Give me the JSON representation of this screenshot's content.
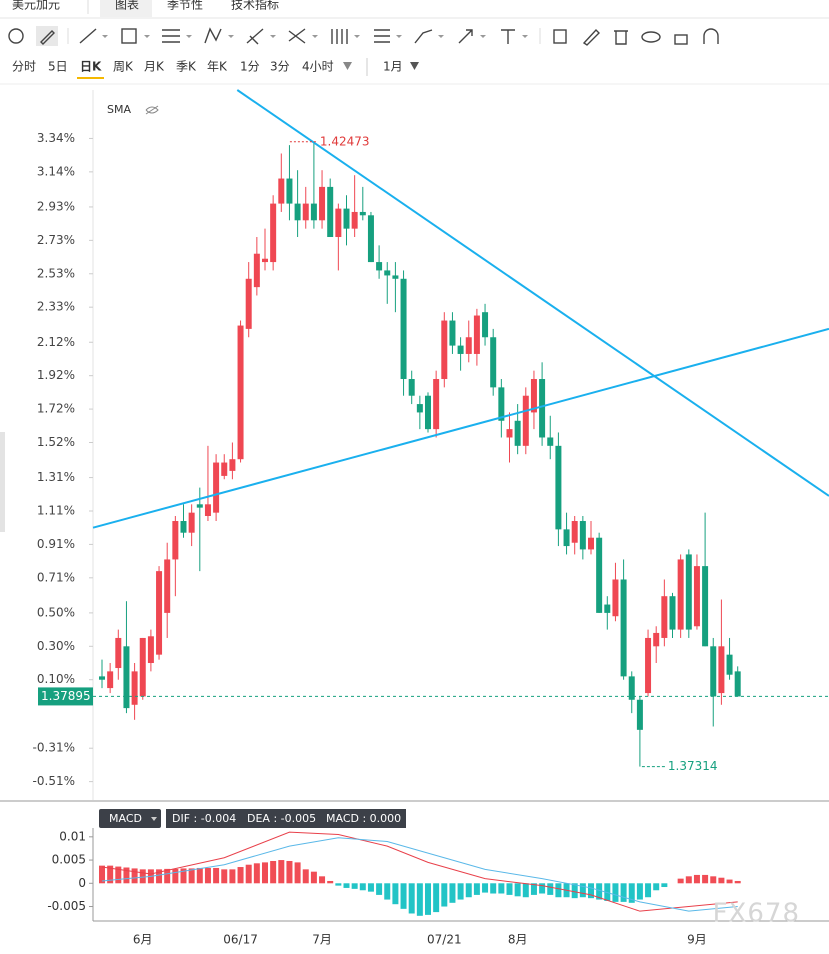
{
  "ui": {
    "tabs": [
      "美元加元",
      "图表",
      "季节性",
      "技术指标"
    ],
    "timeframes": [
      "分时",
      "5日",
      "日K",
      "周K",
      "月K",
      "季K",
      "年K",
      "1分",
      "3分",
      "4小时"
    ],
    "period": "1月",
    "indicator_label": "SMA",
    "watermark": "FX678"
  },
  "chart_data": [
    {
      "type": "candlestick",
      "up_color": "#ef4752",
      "down_color": "#16a07f",
      "categories": [
        null,
        null,
        null,
        null,
        null,
        "6月",
        null,
        null,
        null,
        null,
        null,
        null,
        null,
        null,
        null,
        null,
        null,
        "06/17",
        null,
        null,
        null,
        null,
        null,
        null,
        null,
        null,
        null,
        "7月",
        null,
        null,
        null,
        null,
        null,
        null,
        null,
        null,
        null,
        null,
        null,
        null,
        null,
        null,
        "07/21",
        null,
        null,
        null,
        null,
        null,
        null,
        null,
        null,
        "8月",
        null,
        null,
        null,
        null,
        null,
        null,
        null,
        null,
        null,
        null,
        null,
        null,
        null,
        null,
        null,
        null,
        null,
        null,
        null,
        null,
        null,
        "9月",
        null,
        null,
        null,
        null,
        null
      ],
      "open": [
        0.12,
        0.05,
        0.17,
        0.3,
        -0.05,
        0.0,
        0.2,
        0.25,
        0.5,
        0.82,
        1.05,
        0.98,
        1.15,
        1.08,
        1.1,
        1.32,
        1.35,
        1.42,
        2.2,
        2.45,
        2.6,
        2.6,
        2.95,
        3.1,
        2.95,
        2.85,
        2.95,
        2.85,
        3.05,
        2.75,
        2.92,
        2.8,
        2.9,
        2.88,
        2.6,
        2.55,
        2.52,
        2.5,
        1.9,
        1.75,
        1.8,
        1.6,
        1.9,
        2.25,
        2.1,
        2.05,
        2.05,
        2.3,
        2.15,
        1.85,
        1.55,
        1.65,
        1.5,
        1.7,
        1.9,
        1.55,
        1.5,
        1.0,
        0.92,
        1.05,
        0.88,
        0.95,
        0.55,
        0.48,
        0.7,
        0.12,
        -0.02,
        0.02,
        0.3,
        0.35,
        0.6,
        0.4,
        0.85,
        0.42,
        0.78,
        0.3,
        0.02,
        0.25,
        0.15
      ],
      "high": [
        0.22,
        0.2,
        0.4,
        0.57,
        0.2,
        0.35,
        0.4,
        0.78,
        0.92,
        1.08,
        1.15,
        1.15,
        1.25,
        1.5,
        1.45,
        1.45,
        1.52,
        2.25,
        2.6,
        2.75,
        2.8,
        3.0,
        3.25,
        3.3,
        3.15,
        3.05,
        3.32,
        3.15,
        3.1,
        2.95,
        3.0,
        3.12,
        3.05,
        2.9,
        2.7,
        2.6,
        2.6,
        2.55,
        1.95,
        1.8,
        1.82,
        1.95,
        2.3,
        2.3,
        2.15,
        2.25,
        2.32,
        2.35,
        2.2,
        1.9,
        1.7,
        1.75,
        1.85,
        1.95,
        2.0,
        1.68,
        1.58,
        1.1,
        1.08,
        1.08,
        1.05,
        0.98,
        0.6,
        0.8,
        0.82,
        0.15,
        0.0,
        0.4,
        0.42,
        0.7,
        0.62,
        0.85,
        0.88,
        0.85,
        1.1,
        0.35,
        0.58,
        0.35,
        0.18
      ],
      "low": [
        0.05,
        0.02,
        0.1,
        -0.1,
        -0.14,
        -0.02,
        0.15,
        0.22,
        0.35,
        0.6,
        0.95,
        0.9,
        0.75,
        1.05,
        1.05,
        1.3,
        1.3,
        1.4,
        2.15,
        2.4,
        2.55,
        2.55,
        2.9,
        2.85,
        2.75,
        2.8,
        2.8,
        2.8,
        2.75,
        2.55,
        2.7,
        2.75,
        2.85,
        2.6,
        2.5,
        2.35,
        2.3,
        1.8,
        1.75,
        1.6,
        1.58,
        1.55,
        1.85,
        2.05,
        1.95,
        2.0,
        1.98,
        2.1,
        1.8,
        1.55,
        1.4,
        1.45,
        1.45,
        1.6,
        1.5,
        1.42,
        0.9,
        0.85,
        0.85,
        0.82,
        0.85,
        0.5,
        0.4,
        0.45,
        0.1,
        -0.1,
        -0.42,
        0.0,
        0.2,
        0.3,
        0.35,
        0.35,
        0.35,
        0.4,
        0.3,
        -0.18,
        -0.05,
        0.1,
        0.0
      ],
      "close": [
        0.1,
        0.15,
        0.35,
        -0.07,
        0.15,
        0.35,
        0.36,
        0.75,
        0.82,
        1.05,
        0.98,
        1.1,
        1.13,
        1.15,
        1.4,
        1.4,
        1.42,
        2.22,
        2.5,
        2.65,
        2.62,
        2.95,
        3.1,
        2.95,
        2.85,
        2.95,
        2.85,
        3.05,
        2.75,
        2.92,
        2.8,
        2.9,
        2.88,
        2.6,
        2.55,
        2.52,
        2.5,
        1.9,
        1.8,
        1.7,
        1.6,
        1.9,
        2.25,
        2.1,
        2.05,
        2.15,
        2.28,
        2.15,
        1.85,
        1.65,
        1.6,
        1.5,
        1.8,
        1.9,
        1.55,
        1.5,
        1.0,
        0.9,
        1.05,
        0.88,
        0.95,
        0.5,
        0.5,
        0.7,
        0.12,
        -0.02,
        -0.2,
        0.35,
        0.38,
        0.6,
        0.4,
        0.82,
        0.4,
        0.78,
        0.3,
        0.0,
        0.3,
        0.13,
        0.0
      ],
      "ylim": [
        -0.62,
        3.63
      ],
      "yticks": [
        {
          "value": 3.34,
          "label": "3.34%"
        },
        {
          "value": 3.14,
          "label": "3.14%"
        },
        {
          "value": 2.93,
          "label": "2.93%"
        },
        {
          "value": 2.73,
          "label": "2.73%"
        },
        {
          "value": 2.53,
          "label": "2.53%"
        },
        {
          "value": 2.33,
          "label": "2.33%"
        },
        {
          "value": 2.12,
          "label": "2.12%"
        },
        {
          "value": 1.92,
          "label": "1.92%"
        },
        {
          "value": 1.72,
          "label": "1.72%"
        },
        {
          "value": 1.52,
          "label": "1.52%"
        },
        {
          "value": 1.31,
          "label": "1.31%"
        },
        {
          "value": 1.11,
          "label": "1.11%"
        },
        {
          "value": 0.91,
          "label": "0.91%"
        },
        {
          "value": 0.71,
          "label": "0.71%"
        },
        {
          "value": 0.5,
          "label": "0.50%"
        },
        {
          "value": 0.3,
          "label": "0.30%"
        },
        {
          "value": 0.1,
          "label": "0.10%"
        },
        {
          "value": -0.31,
          "label": "-0.31%"
        },
        {
          "value": -0.51,
          "label": "-0.51%"
        }
      ],
      "trendlines": [
        {
          "x": [
            16.6,
            89.2
          ],
          "y": [
            3.63,
            1.2
          ],
          "color": "#1ab0ee"
        },
        {
          "x": [
            -1.1,
            89.2
          ],
          "y": [
            1.01,
            2.2
          ],
          "color": "#1ab0ee"
        }
      ],
      "last_price": {
        "y": 0,
        "text": "1.37895",
        "color": "#16a07f"
      },
      "high_note": {
        "x": 26,
        "y": 3.32,
        "text": "1.42473",
        "color": "#e03a3a"
      },
      "low_note": {
        "x": 66,
        "y": -0.42,
        "text": "1.37314",
        "color": "#16a07f"
      }
    },
    {
      "type": "macd",
      "name": "MACD",
      "readout": [
        "DIF : -0.004",
        "DEA : -0.005",
        "MACD : 0.000"
      ],
      "values": [
        0.0038,
        0.0038,
        0.0036,
        0.0034,
        0.0032,
        0.003,
        0.003,
        0.003,
        0.0031,
        0.0031,
        0.0032,
        0.0032,
        0.0033,
        0.0033,
        0.0033,
        0.003,
        0.003,
        0.0035,
        0.004,
        0.0043,
        0.0045,
        0.0048,
        0.005,
        0.0048,
        0.0045,
        0.003,
        0.0025,
        0.0015,
        0.0005,
        -0.0005,
        -0.001,
        -0.0012,
        -0.0015,
        -0.0018,
        -0.0025,
        -0.0035,
        -0.0045,
        -0.0055,
        -0.0065,
        -0.007,
        -0.0068,
        -0.0062,
        -0.005,
        -0.0042,
        -0.0035,
        -0.003,
        -0.0025,
        -0.002,
        -0.0022,
        -0.0022,
        -0.0025,
        -0.0028,
        -0.003,
        -0.0025,
        -0.0022,
        -0.0025,
        -0.003,
        -0.003,
        -0.0032,
        -0.003,
        -0.0032,
        -0.0035,
        -0.0038,
        -0.004,
        -0.004,
        -0.0042,
        -0.0035,
        -0.003,
        -0.0015,
        -0.0008,
        0.0,
        0.001,
        0.0015,
        0.0018,
        0.0018,
        0.0015,
        0.0012,
        0.0008,
        0.0005
      ],
      "pos_color": "#f04d55",
      "neg_color": "#22c4c6",
      "lines": [
        {
          "color": "#e8404a",
          "x": [
            0,
            6,
            15,
            23,
            29,
            35,
            40,
            47,
            54,
            60,
            66,
            72,
            78
          ],
          "values": [
            0.0035,
            0.002,
            0.0055,
            0.011,
            0.0105,
            0.008,
            0.0045,
            0.001,
            -0.0005,
            -0.0025,
            -0.006,
            -0.005,
            -0.004
          ]
        },
        {
          "color": "#5ab8e8",
          "x": [
            0,
            6,
            15,
            23,
            29,
            35,
            40,
            47,
            54,
            60,
            66,
            72,
            78
          ],
          "values": [
            0.0005,
            0.0015,
            0.004,
            0.008,
            0.0098,
            0.009,
            0.0065,
            0.003,
            0.001,
            -0.001,
            -0.004,
            -0.006,
            -0.005
          ]
        }
      ],
      "ylim": [
        -0.0079,
        0.0119
      ],
      "yticks": [
        0.01,
        0.005,
        0,
        -0.005
      ]
    }
  ]
}
